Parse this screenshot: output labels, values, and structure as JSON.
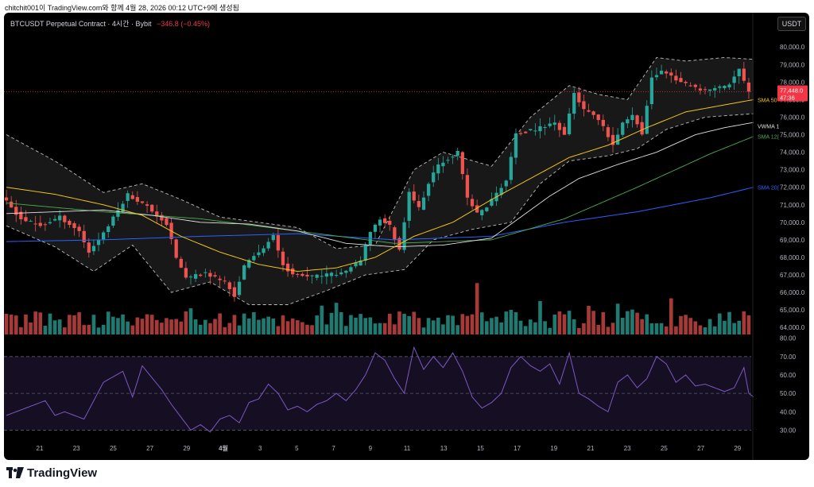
{
  "header": {
    "caption": "chitchit001이 TradingView.com와 함께 4월 28, 2026 00:12 UTC+9에 생성됨"
  },
  "legend": {
    "symbol": "BTCUSDT Perpetual Contract · 4시간 · Bybit",
    "change": "−346.8 (−0.45%)"
  },
  "currency_button": "USDT",
  "logo_text": "TradingView",
  "colors": {
    "up": "#26a69a",
    "down": "#ef5350",
    "sma50": "#f0c419",
    "vwma": "#e0e0e0",
    "sma120": "#4caf50",
    "sma200": "#2962ff",
    "rsi": "#7e57c2",
    "bands": "#bdbdbd"
  },
  "chart_data": {
    "type": "candlestick",
    "price_axis": {
      "labels": [
        "80,000.0",
        "79,000.0",
        "78,000.0",
        "77,000.0",
        "76,000.0",
        "75,000.0",
        "74,000.0",
        "73,000.0",
        "72,000.0",
        "71,000.0",
        "70,000.0",
        "69,000.0",
        "68,000.0",
        "67,000.0",
        "66,000.0",
        "65,000.0",
        "64,000.0"
      ],
      "range": [
        63600,
        80600
      ]
    },
    "rsi_axis": {
      "labels": [
        "80.00",
        "70.00",
        "60.00",
        "50.00",
        "40.00",
        "30.00"
      ],
      "range": [
        25,
        82
      ],
      "bands": [
        30,
        50,
        70
      ]
    },
    "x_axis": {
      "labels": [
        "21",
        "23",
        "25",
        "27",
        "29",
        "4월",
        "3",
        "5",
        "7",
        "9",
        "11",
        "13",
        "15",
        "17",
        "19",
        "21",
        "23",
        "25",
        "27",
        "29"
      ],
      "range": [
        20.3,
        29.1
      ]
    },
    "last_price": {
      "value": 77448,
      "label": "77,448.0",
      "countdown": "47:36"
    },
    "indicator_labels": {
      "sma50": "SMA 50",
      "vwma": "VWMA 1",
      "sma120": "SMA 12(",
      "sma200": "SMA 20("
    },
    "price_path": [
      [
        0,
        71500
      ],
      [
        4,
        70200
      ],
      [
        8,
        69800
      ],
      [
        12,
        70300
      ],
      [
        16,
        69500
      ],
      [
        18,
        68300
      ],
      [
        22,
        69800
      ],
      [
        26,
        71600
      ],
      [
        30,
        70900
      ],
      [
        34,
        69900
      ],
      [
        36,
        68000
      ],
      [
        38,
        66800
      ],
      [
        42,
        67100
      ],
      [
        46,
        66600
      ],
      [
        48,
        65800
      ],
      [
        50,
        67500
      ],
      [
        54,
        68600
      ],
      [
        56,
        69200
      ],
      [
        58,
        67600
      ],
      [
        60,
        67000
      ],
      [
        64,
        66900
      ],
      [
        70,
        67100
      ],
      [
        74,
        67800
      ],
      [
        76,
        69500
      ],
      [
        78,
        70200
      ],
      [
        80,
        69800
      ],
      [
        82,
        68400
      ],
      [
        84,
        71800
      ],
      [
        86,
        70800
      ],
      [
        88,
        72200
      ],
      [
        90,
        73300
      ],
      [
        94,
        74000
      ],
      [
        96,
        71400
      ],
      [
        98,
        70500
      ],
      [
        100,
        70900
      ],
      [
        104,
        72400
      ],
      [
        106,
        75000
      ],
      [
        110,
        75300
      ],
      [
        114,
        75700
      ],
      [
        116,
        75000
      ],
      [
        118,
        77400
      ],
      [
        120,
        76400
      ],
      [
        122,
        76100
      ],
      [
        124,
        75400
      ],
      [
        126,
        74400
      ],
      [
        128,
        75600
      ],
      [
        130,
        76200
      ],
      [
        132,
        75100
      ],
      [
        134,
        78200
      ],
      [
        136,
        78700
      ],
      [
        140,
        78000
      ],
      [
        144,
        77500
      ],
      [
        146,
        77600
      ],
      [
        148,
        77700
      ],
      [
        150,
        77900
      ],
      [
        152,
        78700
      ],
      [
        154,
        77400
      ]
    ],
    "sma50_path": [
      [
        0,
        72000
      ],
      [
        10,
        71600
      ],
      [
        20,
        71000
      ],
      [
        28,
        70400
      ],
      [
        36,
        69200
      ],
      [
        44,
        68300
      ],
      [
        52,
        67600
      ],
      [
        60,
        67200
      ],
      [
        68,
        67400
      ],
      [
        76,
        68000
      ],
      [
        84,
        69200
      ],
      [
        92,
        70000
      ],
      [
        100,
        71300
      ],
      [
        108,
        72500
      ],
      [
        116,
        73700
      ],
      [
        124,
        74400
      ],
      [
        132,
        75400
      ],
      [
        140,
        76300
      ],
      [
        148,
        76700
      ],
      [
        154,
        77000
      ]
    ],
    "vwma_path": [
      [
        0,
        70500
      ],
      [
        10,
        70600
      ],
      [
        20,
        70700
      ],
      [
        30,
        70400
      ],
      [
        40,
        70000
      ],
      [
        50,
        69900
      ],
      [
        60,
        69500
      ],
      [
        70,
        68800
      ],
      [
        80,
        68600
      ],
      [
        90,
        68700
      ],
      [
        100,
        69100
      ],
      [
        106,
        70300
      ],
      [
        112,
        71500
      ],
      [
        118,
        72500
      ],
      [
        126,
        73300
      ],
      [
        134,
        74000
      ],
      [
        142,
        75000
      ],
      [
        148,
        75400
      ],
      [
        154,
        75700
      ]
    ],
    "sma120_path": [
      [
        0,
        71100
      ],
      [
        20,
        70600
      ],
      [
        40,
        70200
      ],
      [
        60,
        69500
      ],
      [
        80,
        68800
      ],
      [
        100,
        69000
      ],
      [
        115,
        70200
      ],
      [
        130,
        72000
      ],
      [
        145,
        73900
      ],
      [
        154,
        74900
      ]
    ],
    "sma200_path": [
      [
        0,
        68900
      ],
      [
        20,
        69000
      ],
      [
        40,
        69200
      ],
      [
        60,
        69350
      ],
      [
        80,
        69000
      ],
      [
        100,
        69200
      ],
      [
        115,
        70000
      ],
      [
        130,
        70600
      ],
      [
        145,
        71400
      ],
      [
        154,
        72000
      ]
    ],
    "band_upper_path": [
      [
        0,
        75000
      ],
      [
        10,
        73500
      ],
      [
        20,
        71700
      ],
      [
        28,
        72200
      ],
      [
        36,
        71300
      ],
      [
        44,
        70300
      ],
      [
        52,
        70000
      ],
      [
        60,
        69700
      ],
      [
        68,
        68500
      ],
      [
        76,
        68700
      ],
      [
        84,
        73000
      ],
      [
        90,
        74000
      ],
      [
        100,
        73200
      ],
      [
        108,
        76000
      ],
      [
        116,
        77800
      ],
      [
        122,
        77300
      ],
      [
        128,
        77000
      ],
      [
        134,
        79400
      ],
      [
        140,
        79200
      ],
      [
        148,
        79400
      ],
      [
        154,
        79300
      ]
    ],
    "band_lower_path": [
      [
        0,
        69800
      ],
      [
        10,
        68600
      ],
      [
        18,
        67200
      ],
      [
        26,
        68700
      ],
      [
        34,
        66000
      ],
      [
        42,
        66600
      ],
      [
        50,
        65300
      ],
      [
        58,
        65300
      ],
      [
        66,
        66100
      ],
      [
        74,
        67000
      ],
      [
        82,
        67300
      ],
      [
        88,
        69000
      ],
      [
        96,
        69600
      ],
      [
        104,
        70000
      ],
      [
        110,
        72200
      ],
      [
        116,
        73500
      ],
      [
        124,
        73800
      ],
      [
        130,
        74200
      ],
      [
        136,
        75300
      ],
      [
        144,
        76000
      ],
      [
        154,
        76200
      ]
    ],
    "rsi_path": [
      [
        0,
        38
      ],
      [
        4,
        42
      ],
      [
        8,
        46
      ],
      [
        10,
        38
      ],
      [
        12,
        40
      ],
      [
        16,
        36
      ],
      [
        20,
        56
      ],
      [
        24,
        62
      ],
      [
        26,
        48
      ],
      [
        28,
        65
      ],
      [
        32,
        52
      ],
      [
        34,
        44
      ],
      [
        36,
        37
      ],
      [
        38,
        30
      ],
      [
        40,
        33
      ],
      [
        42,
        29
      ],
      [
        44,
        36
      ],
      [
        46,
        38
      ],
      [
        48,
        34
      ],
      [
        50,
        45
      ],
      [
        52,
        47
      ],
      [
        54,
        55
      ],
      [
        56,
        50
      ],
      [
        58,
        41
      ],
      [
        60,
        43
      ],
      [
        62,
        40
      ],
      [
        64,
        44
      ],
      [
        66,
        46
      ],
      [
        68,
        50
      ],
      [
        70,
        46
      ],
      [
        72,
        52
      ],
      [
        74,
        60
      ],
      [
        76,
        72
      ],
      [
        78,
        68
      ],
      [
        80,
        58
      ],
      [
        82,
        50
      ],
      [
        84,
        75
      ],
      [
        86,
        63
      ],
      [
        88,
        70
      ],
      [
        90,
        64
      ],
      [
        92,
        72
      ],
      [
        94,
        62
      ],
      [
        96,
        48
      ],
      [
        98,
        42
      ],
      [
        100,
        45
      ],
      [
        102,
        50
      ],
      [
        104,
        64
      ],
      [
        106,
        70
      ],
      [
        108,
        65
      ],
      [
        110,
        62
      ],
      [
        112,
        66
      ],
      [
        114,
        55
      ],
      [
        116,
        72
      ],
      [
        118,
        50
      ],
      [
        120,
        47
      ],
      [
        122,
        43
      ],
      [
        124,
        40
      ],
      [
        126,
        56
      ],
      [
        128,
        60
      ],
      [
        130,
        53
      ],
      [
        132,
        58
      ],
      [
        134,
        70
      ],
      [
        136,
        66
      ],
      [
        138,
        56
      ],
      [
        140,
        60
      ],
      [
        142,
        54
      ],
      [
        144,
        55
      ],
      [
        146,
        53
      ],
      [
        148,
        51
      ],
      [
        150,
        53
      ],
      [
        152,
        64
      ],
      [
        153,
        50
      ],
      [
        154,
        48
      ]
    ]
  }
}
